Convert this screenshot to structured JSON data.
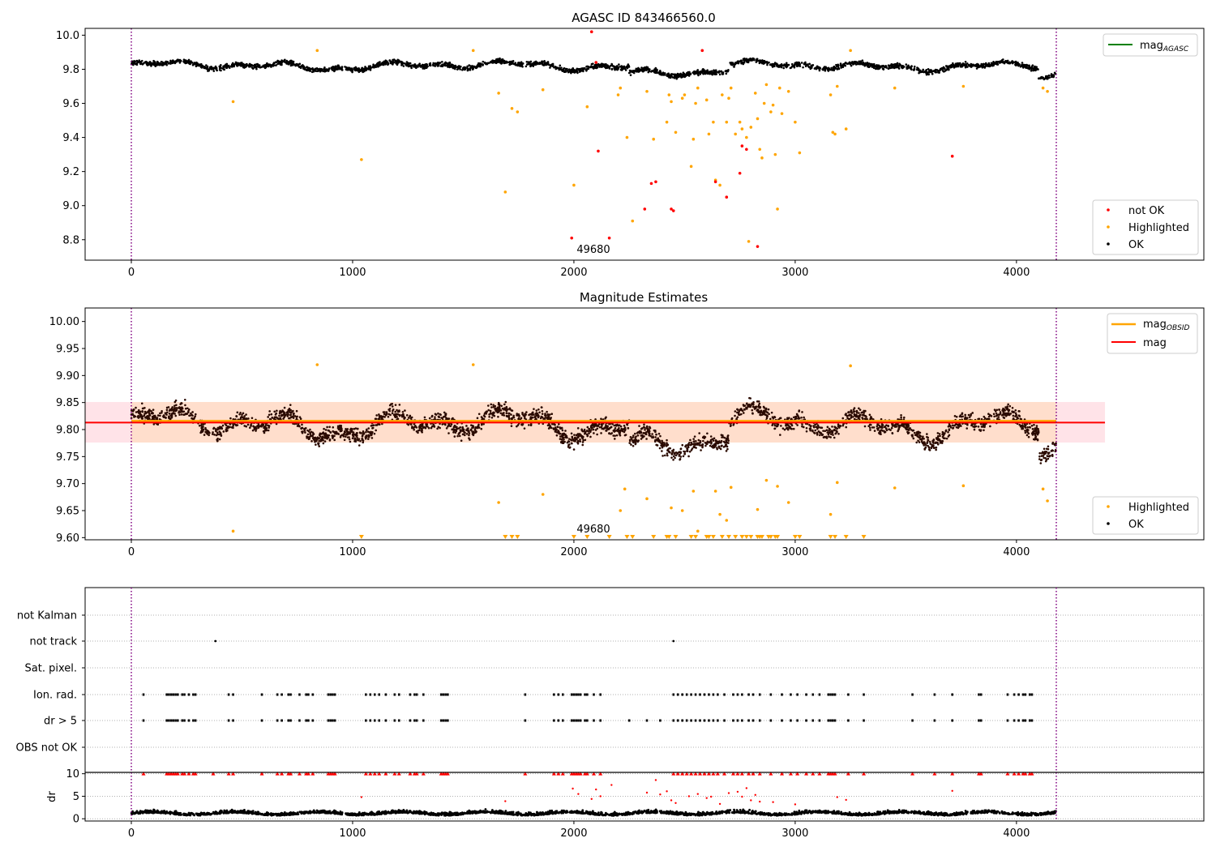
{
  "figure": {
    "panel1_title": "AGASC ID 843466560.0",
    "panel2_title": "Magnitude Estimates",
    "x_ticks": [
      "0",
      "1000",
      "2000",
      "3000",
      "4000"
    ],
    "obsid_label": "49680"
  },
  "colors": {
    "ok": "#000000",
    "highlighted": "#ffa500",
    "not_ok": "#ff0000",
    "agasc": "#008000",
    "mag_line": "#ff0000",
    "obsid_line": "#ffa500",
    "band_outer": "#ffc0cb",
    "band_inner": "#ffdab9",
    "boundary": "#800080"
  },
  "chart_data": [
    {
      "type": "scatter",
      "title": "AGASC ID 843466560.0",
      "xlim": [
        -210,
        4860
      ],
      "ylim": [
        8.68,
        10.04
      ],
      "x_ticks": [
        0,
        1000,
        2000,
        3000,
        4000
      ],
      "y_ticks": [
        "8.8",
        "9.0",
        "9.2",
        "9.4",
        "9.6",
        "9.8",
        "10.0"
      ],
      "obs_boundaries": [
        0,
        4180
      ],
      "obsid_annotation": {
        "text": "49680",
        "x": 2000
      },
      "legend_upper": [
        {
          "label": "mag",
          "subscript": "AGASC",
          "color": "#008000",
          "kind": "line"
        }
      ],
      "legend_lower": [
        {
          "label": "not OK",
          "color": "#ff0000"
        },
        {
          "label": "Highlighted",
          "color": "#ffa500"
        },
        {
          "label": "OK",
          "color": "#000000"
        }
      ],
      "ok_band": {
        "x_range": [
          0,
          4180
        ],
        "y_center": 9.82,
        "y_spread": 0.035
      },
      "highlighted": [
        [
          460,
          9.61
        ],
        [
          840,
          9.91
        ],
        [
          1040,
          9.27
        ],
        [
          1545,
          9.91
        ],
        [
          1660,
          9.66
        ],
        [
          1690,
          9.08
        ],
        [
          1720,
          9.57
        ],
        [
          1745,
          9.55
        ],
        [
          1860,
          9.68
        ],
        [
          2000,
          9.12
        ],
        [
          2060,
          9.58
        ],
        [
          2200,
          9.65
        ],
        [
          2210,
          9.69
        ],
        [
          2240,
          9.4
        ],
        [
          2265,
          8.91
        ],
        [
          2330,
          9.67
        ],
        [
          2360,
          9.39
        ],
        [
          2420,
          9.49
        ],
        [
          2430,
          9.65
        ],
        [
          2440,
          9.61
        ],
        [
          2460,
          9.43
        ],
        [
          2490,
          9.63
        ],
        [
          2500,
          9.65
        ],
        [
          2530,
          9.23
        ],
        [
          2540,
          9.39
        ],
        [
          2550,
          9.6
        ],
        [
          2560,
          9.69
        ],
        [
          2600,
          9.62
        ],
        [
          2610,
          9.42
        ],
        [
          2630,
          9.49
        ],
        [
          2640,
          9.15
        ],
        [
          2660,
          9.12
        ],
        [
          2670,
          9.65
        ],
        [
          2690,
          9.49
        ],
        [
          2700,
          9.63
        ],
        [
          2710,
          9.69
        ],
        [
          2730,
          9.42
        ],
        [
          2750,
          9.49
        ],
        [
          2760,
          9.45
        ],
        [
          2780,
          9.4
        ],
        [
          2790,
          8.79
        ],
        [
          2800,
          9.46
        ],
        [
          2820,
          9.66
        ],
        [
          2830,
          9.51
        ],
        [
          2840,
          9.33
        ],
        [
          2850,
          9.28
        ],
        [
          2860,
          9.6
        ],
        [
          2870,
          9.71
        ],
        [
          2890,
          9.55
        ],
        [
          2900,
          9.59
        ],
        [
          2910,
          9.3
        ],
        [
          2920,
          8.98
        ],
        [
          2930,
          9.69
        ],
        [
          2940,
          9.54
        ],
        [
          2970,
          9.67
        ],
        [
          3000,
          9.49
        ],
        [
          3020,
          9.31
        ],
        [
          3160,
          9.65
        ],
        [
          3170,
          9.43
        ],
        [
          3180,
          9.42
        ],
        [
          3190,
          9.7
        ],
        [
          3230,
          9.45
        ],
        [
          3250,
          9.91
        ],
        [
          3450,
          9.69
        ],
        [
          3760,
          9.7
        ],
        [
          4120,
          9.69
        ],
        [
          4140,
          9.67
        ]
      ],
      "not_ok": [
        [
          1990,
          8.81
        ],
        [
          2080,
          10.02
        ],
        [
          2100,
          9.84
        ],
        [
          2110,
          9.32
        ],
        [
          2160,
          8.81
        ],
        [
          2320,
          8.98
        ],
        [
          2350,
          9.13
        ],
        [
          2370,
          9.14
        ],
        [
          2440,
          8.98
        ],
        [
          2450,
          8.97
        ],
        [
          2580,
          9.91
        ],
        [
          2640,
          9.14
        ],
        [
          2690,
          9.05
        ],
        [
          2750,
          9.19
        ],
        [
          2760,
          9.35
        ],
        [
          2780,
          9.33
        ],
        [
          2830,
          8.76
        ],
        [
          3710,
          9.29
        ]
      ]
    },
    {
      "type": "scatter",
      "title": "Magnitude Estimates",
      "xlim": [
        -210,
        4860
      ],
      "ylim": [
        9.596,
        10.025
      ],
      "x_ticks": [
        0,
        1000,
        2000,
        3000,
        4000
      ],
      "y_ticks": [
        "9.60",
        "9.65",
        "9.70",
        "9.75",
        "9.80",
        "9.85",
        "9.90",
        "9.95",
        "10.00"
      ],
      "obs_boundaries": [
        0,
        4180
      ],
      "obsid_annotation": {
        "text": "49680",
        "x": 2000
      },
      "legend_upper": [
        {
          "label": "mag",
          "subscript": "OBSID",
          "color": "#ffa500",
          "kind": "line"
        },
        {
          "label": "mag",
          "subscript": "",
          "color": "#ff0000",
          "kind": "line"
        }
      ],
      "legend_lower": [
        {
          "label": "Highlighted",
          "color": "#ffa500"
        },
        {
          "label": "OK",
          "color": "#000000"
        }
      ],
      "mag": 9.813,
      "mag_obsid": 9.816,
      "band": {
        "x_range": [
          -210,
          4400
        ],
        "y_range": [
          9.776,
          9.851
        ]
      },
      "ok_band": {
        "x_range": [
          0,
          4180
        ],
        "y_center": 9.81,
        "y_spread": 0.035
      },
      "highlighted": [
        [
          460,
          9.612
        ],
        [
          840,
          9.92
        ],
        [
          1545,
          9.92
        ],
        [
          1660,
          9.665
        ],
        [
          1860,
          9.68
        ],
        [
          2230,
          9.69
        ],
        [
          2210,
          9.65
        ],
        [
          2330,
          9.672
        ],
        [
          2440,
          9.655
        ],
        [
          2490,
          9.65
        ],
        [
          2540,
          9.686
        ],
        [
          2560,
          9.612
        ],
        [
          2640,
          9.686
        ],
        [
          2660,
          9.643
        ],
        [
          2690,
          9.632
        ],
        [
          2710,
          9.693
        ],
        [
          2830,
          9.652
        ],
        [
          2870,
          9.706
        ],
        [
          2920,
          9.695
        ],
        [
          2970,
          9.665
        ],
        [
          3160,
          9.643
        ],
        [
          3190,
          9.702
        ],
        [
          3250,
          9.918
        ],
        [
          3450,
          9.692
        ],
        [
          3760,
          9.696
        ],
        [
          4120,
          9.69
        ],
        [
          4140,
          9.668
        ]
      ],
      "below_range_markers": [
        1040,
        1690,
        1720,
        1745,
        2000,
        2060,
        2160,
        2240,
        2265,
        2360,
        2420,
        2430,
        2460,
        2530,
        2550,
        2600,
        2610,
        2630,
        2670,
        2700,
        2730,
        2760,
        2780,
        2800,
        2830,
        2840,
        2850,
        2880,
        2890,
        2910,
        2920,
        3000,
        3020,
        3160,
        3180,
        3230,
        3310
      ]
    },
    {
      "type": "scatter",
      "title": "",
      "xlim": [
        -210,
        4860
      ],
      "categories": [
        "not Kalman",
        "not track",
        "Sat. pixel.",
        "Ion. rad.",
        "dr > 5",
        "OBS not OK"
      ],
      "not_track": [
        380,
        2450
      ],
      "ion_rad": [
        55,
        160,
        170,
        180,
        190,
        200,
        210,
        230,
        240,
        260,
        280,
        290,
        440,
        460,
        590,
        660,
        680,
        710,
        720,
        760,
        790,
        800,
        820,
        890,
        900,
        910,
        920,
        1060,
        1080,
        1100,
        1120,
        1150,
        1190,
        1210,
        1260,
        1280,
        1290,
        1320,
        1400,
        1410,
        1420,
        1430,
        1780,
        1910,
        1930,
        1950,
        1990,
        2000,
        2010,
        2020,
        2030,
        2050,
        2060,
        2090,
        2120,
        2450,
        2470,
        2490,
        2510,
        2530,
        2550,
        2570,
        2590,
        2610,
        2630,
        2650,
        2680,
        2720,
        2740,
        2760,
        2790,
        2810,
        2840,
        2890,
        2940,
        2980,
        3010,
        3050,
        3080,
        3110,
        3150,
        3160,
        3170,
        3180,
        3240,
        3310,
        3530,
        3630,
        3710,
        3830,
        3840,
        3960,
        3990,
        4010,
        4030,
        4040,
        4060,
        4070
      ],
      "dr_gt_5": [
        55,
        160,
        170,
        180,
        190,
        200,
        210,
        230,
        240,
        260,
        280,
        290,
        440,
        460,
        590,
        660,
        680,
        710,
        720,
        760,
        790,
        800,
        820,
        890,
        900,
        910,
        920,
        1060,
        1080,
        1100,
        1120,
        1150,
        1190,
        1210,
        1260,
        1280,
        1290,
        1320,
        1400,
        1410,
        1420,
        1430,
        1780,
        1910,
        1930,
        1950,
        1990,
        2000,
        2010,
        2020,
        2030,
        2050,
        2060,
        2090,
        2120,
        2250,
        2330,
        2390,
        2450,
        2470,
        2490,
        2510,
        2530,
        2550,
        2570,
        2590,
        2610,
        2630,
        2650,
        2680,
        2720,
        2740,
        2760,
        2790,
        2810,
        2840,
        2890,
        2940,
        2980,
        3010,
        3050,
        3080,
        3110,
        3150,
        3160,
        3170,
        3180,
        3240,
        3310,
        3530,
        3630,
        3710,
        3830,
        3840,
        3960,
        3990,
        4010,
        4030,
        4040,
        4060,
        4070
      ]
    },
    {
      "type": "scatter",
      "title": "",
      "xlim": [
        -210,
        4860
      ],
      "ylim": [
        -0.5,
        10.3
      ],
      "y_ticks": [
        "0",
        "5",
        "10"
      ],
      "ylabel": "dr",
      "clipped_x": [
        55,
        160,
        170,
        180,
        190,
        200,
        210,
        230,
        240,
        260,
        280,
        290,
        370,
        440,
        460,
        590,
        660,
        680,
        710,
        720,
        760,
        790,
        800,
        820,
        890,
        900,
        910,
        920,
        1060,
        1080,
        1100,
        1120,
        1150,
        1190,
        1210,
        1260,
        1280,
        1290,
        1320,
        1400,
        1410,
        1420,
        1430,
        1780,
        1910,
        1930,
        1950,
        1990,
        2000,
        2010,
        2020,
        2030,
        2050,
        2060,
        2090,
        2120,
        2450,
        2470,
        2490,
        2510,
        2530,
        2550,
        2570,
        2590,
        2610,
        2630,
        2650,
        2680,
        2720,
        2740,
        2760,
        2790,
        2810,
        2840,
        2890,
        2940,
        2980,
        3010,
        3050,
        3080,
        3110,
        3150,
        3160,
        3170,
        3180,
        3240,
        3310,
        3530,
        3630,
        3710,
        3830,
        3840,
        3960,
        3990,
        4010,
        4030,
        4040,
        4060,
        4070
      ],
      "red_scatter": [
        [
          1040,
          4.8
        ],
        [
          1690,
          3.9
        ],
        [
          1995,
          6.7
        ],
        [
          2020,
          5.5
        ],
        [
          2080,
          4.4
        ],
        [
          2100,
          6.5
        ],
        [
          2120,
          5.0
        ],
        [
          2170,
          7.5
        ],
        [
          2330,
          5.8
        ],
        [
          2370,
          8.6
        ],
        [
          2390,
          5.4
        ],
        [
          2420,
          6.1
        ],
        [
          2440,
          4.1
        ],
        [
          2460,
          3.5
        ],
        [
          2520,
          5.0
        ],
        [
          2560,
          5.5
        ],
        [
          2600,
          4.6
        ],
        [
          2620,
          4.9
        ],
        [
          2660,
          3.3
        ],
        [
          2700,
          5.7
        ],
        [
          2740,
          6.0
        ],
        [
          2760,
          4.9
        ],
        [
          2780,
          6.8
        ],
        [
          2800,
          4.1
        ],
        [
          2820,
          5.3
        ],
        [
          2840,
          3.8
        ],
        [
          2900,
          3.7
        ],
        [
          3000,
          3.2
        ],
        [
          3190,
          4.8
        ],
        [
          3230,
          4.2
        ],
        [
          3710,
          6.2
        ]
      ],
      "ok_band": {
        "x_range": [
          0,
          4180
        ],
        "y_center": 1.1,
        "y_spread": 0.9
      }
    }
  ]
}
